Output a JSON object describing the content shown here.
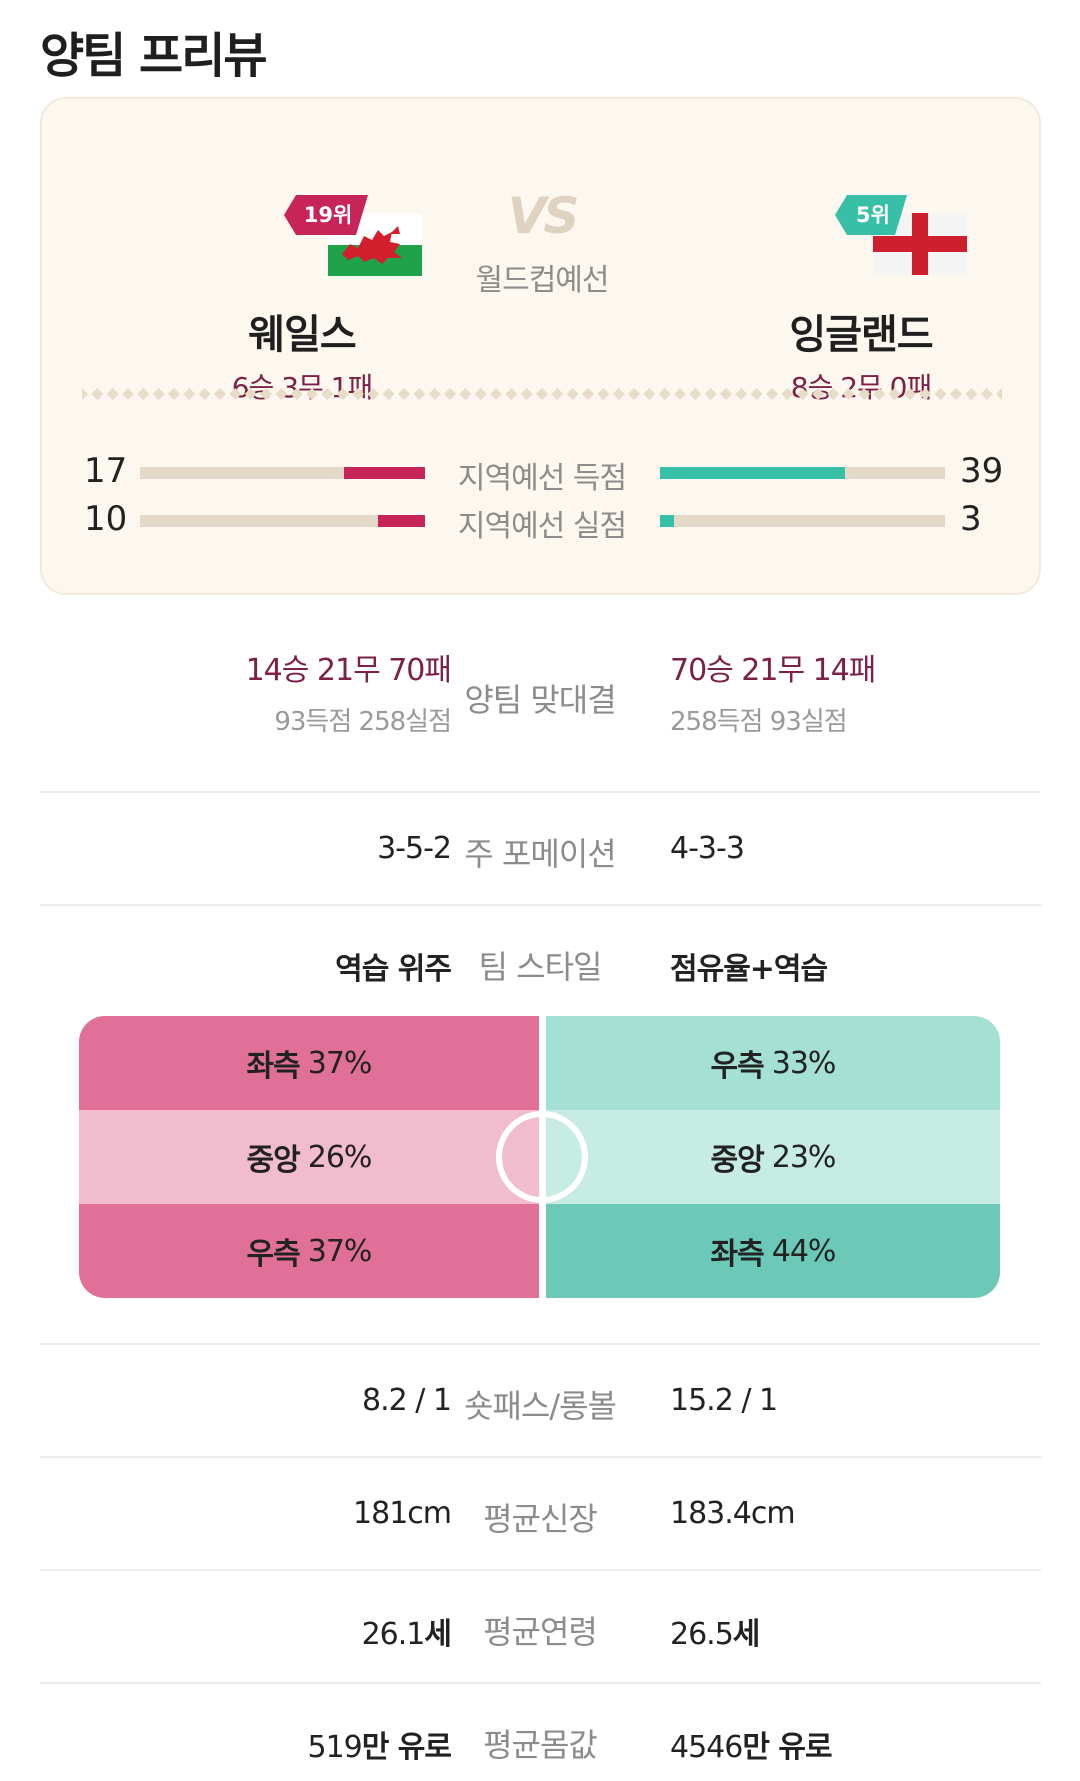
{
  "page": {
    "title": "양팀 프리뷰"
  },
  "match": {
    "vs": "VS",
    "competition": "월드컵예선",
    "home": {
      "rank": "19위",
      "name": "웨일스",
      "record": "6승 3무 1패",
      "flag_icon": "wales-flag"
    },
    "away": {
      "rank": "5위",
      "name": "잉글랜드",
      "record": "8승 2무 0패",
      "flag_icon": "england-flag"
    }
  },
  "qualifier_stats": [
    {
      "label": "지역예선 득점",
      "home": "17",
      "away": "39",
      "home_value": 17,
      "away_value": 39,
      "max": 60
    },
    {
      "label": "지역예선 실점",
      "home": "10",
      "away": "3",
      "home_value": 10,
      "away_value": 3,
      "max": 60
    }
  ],
  "head_to_head": {
    "label": "양팀 맞대결",
    "home_record": "14승 21무 70패",
    "home_goals": "93득점 258실점",
    "away_record": "70승 21무 14패",
    "away_goals": "258득점 93실점"
  },
  "formation": {
    "label": "주 포메이션",
    "home": "3-5-2",
    "away": "4-3-3"
  },
  "team_style": {
    "label": "팀 스타일",
    "home": "역습 위주",
    "away": "점유율+역습"
  },
  "attack_zones": {
    "home": [
      {
        "zone": "좌측",
        "pct": "37%"
      },
      {
        "zone": "중앙",
        "pct": "26%"
      },
      {
        "zone": "우측",
        "pct": "37%"
      }
    ],
    "away": [
      {
        "zone": "우측",
        "pct": "33%"
      },
      {
        "zone": "중앙",
        "pct": "23%"
      },
      {
        "zone": "좌측",
        "pct": "44%"
      }
    ],
    "colors": {
      "home": [
        "#e07097",
        "#f0bcce",
        "#e07097"
      ],
      "away": [
        "#a5e0d4",
        "#c7ece4",
        "#6cc9b7"
      ]
    }
  },
  "shot_pass": {
    "label": "숏패스/롱볼",
    "home": "8.2 / 1",
    "away": "15.2 / 1"
  },
  "avg_height": {
    "label": "평균신장",
    "home": "181cm",
    "away": "183.4cm"
  },
  "avg_age": {
    "label": "평균연령",
    "home_num": "26.1",
    "away_num": "26.5",
    "unit": "세"
  },
  "avg_value": {
    "label": "평균몸값",
    "home_num": "519",
    "away_num": "4546",
    "unit": "만 유로"
  },
  "colors": {
    "home_accent": "#c7245a",
    "away_accent": "#37bfa7",
    "record_text": "#7d2048"
  }
}
